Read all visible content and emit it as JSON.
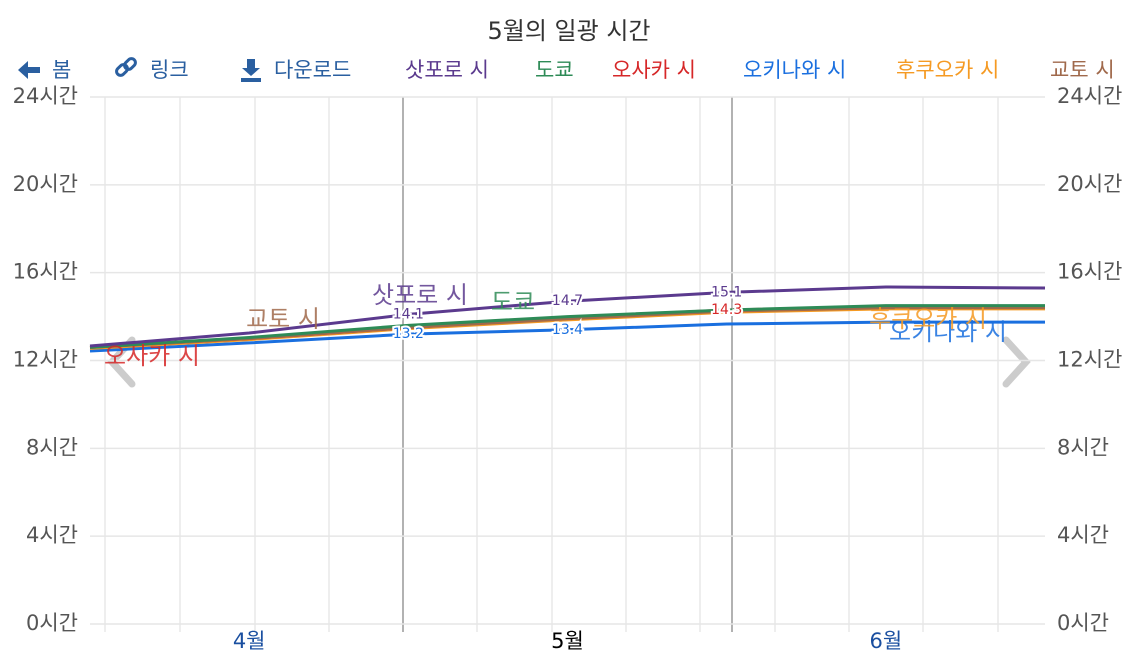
{
  "toolbar": {
    "back": "봄",
    "link": "링크",
    "download": "다운로드"
  },
  "chart_data": {
    "type": "line",
    "title": "5월의 일광 시간",
    "categories": [
      null,
      "4월",
      null,
      "5월",
      null,
      "6월",
      null
    ],
    "series": [
      {
        "name": "삿포로 시",
        "color": "#5b3a8e",
        "values": [
          12.66,
          13.25,
          14.1,
          14.7,
          15.1,
          15.35,
          15.3
        ],
        "value_labels": [
          null,
          null,
          "14.1",
          "14.7",
          "15.1",
          null,
          null
        ]
      },
      {
        "name": "도쿄",
        "color": "#2e8b57",
        "values": [
          12.6,
          13.05,
          13.6,
          14.0,
          14.3,
          14.5,
          14.5
        ]
      },
      {
        "name": "오사카 시",
        "color": "#d62728",
        "values": [
          12.6,
          13.0,
          13.5,
          13.95,
          14.3,
          14.45,
          14.45
        ],
        "value_labels": [
          null,
          null,
          null,
          null,
          "14.3",
          null,
          null
        ]
      },
      {
        "name": "오키나와 시",
        "color": "#1a6fdf",
        "values": [
          12.43,
          12.8,
          13.2,
          13.4,
          13.66,
          13.75,
          13.75
        ],
        "value_labels": [
          null,
          null,
          "13.2",
          "13.4",
          null,
          null,
          null
        ]
      },
      {
        "name": "후쿠오카 시",
        "color": "#f59a23",
        "values": [
          12.55,
          12.95,
          13.45,
          13.85,
          14.2,
          14.35,
          14.35
        ]
      },
      {
        "name": "교토 시",
        "color": "#a0694b",
        "values": [
          12.6,
          13.0,
          13.5,
          13.9,
          14.25,
          14.4,
          14.4
        ]
      }
    ],
    "ylim": [
      0,
      24
    ],
    "yticks": [
      {
        "value": 0,
        "label": "0시간"
      },
      {
        "value": 4,
        "label": "4시간"
      },
      {
        "value": 8,
        "label": "8시간"
      },
      {
        "value": 12,
        "label": "12시간"
      },
      {
        "value": 16,
        "label": "16시간"
      },
      {
        "value": 20,
        "label": "20시간"
      },
      {
        "value": 24,
        "label": "24시간"
      }
    ],
    "grid": true
  }
}
